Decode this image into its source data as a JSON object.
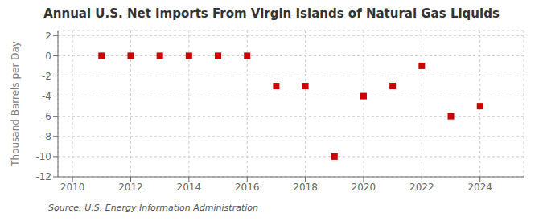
{
  "chart_data": {
    "type": "scatter",
    "title": "Annual U.S. Net Imports From Virgin Islands of Natural Gas Liquids",
    "ylabel": "Thousand Barrels per Day",
    "annotation": "Source: U.S. Energy Information Administration",
    "x": [
      2011,
      2012,
      2013,
      2014,
      2015,
      2016,
      2017,
      2018,
      2019,
      2020,
      2021,
      2022,
      2023,
      2024
    ],
    "values": [
      0,
      0,
      0,
      0,
      0,
      0,
      -3,
      -3,
      -10,
      -4,
      -3,
      -1,
      -6,
      -5
    ],
    "color": "#cc0000",
    "marker": "square",
    "xlim": [
      2009.5,
      2025.5
    ],
    "xticks": [
      2010,
      2012,
      2014,
      2016,
      2018,
      2020,
      2022,
      2024
    ],
    "ylim": [
      -12,
      2.5
    ],
    "yticks": [
      2,
      0,
      -2,
      -4,
      -6,
      -8,
      -10,
      -12
    ],
    "grid": true
  }
}
